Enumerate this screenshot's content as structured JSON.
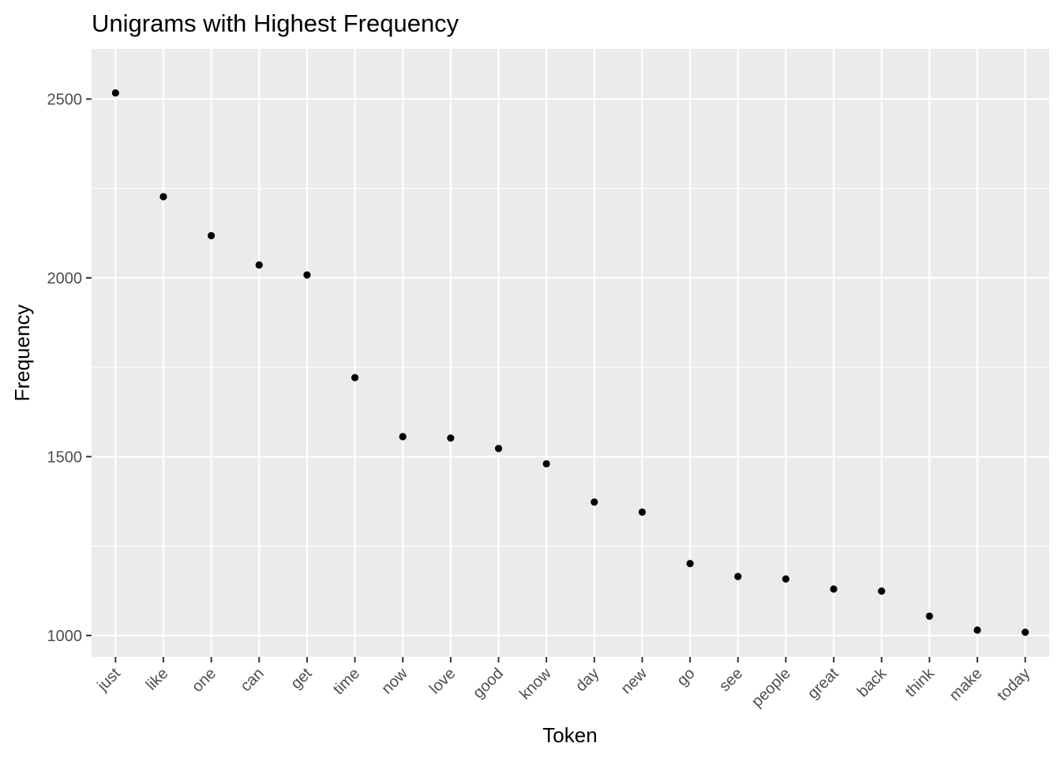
{
  "chart_data": {
    "type": "scatter",
    "title": "Unigrams with Highest Frequency",
    "xlabel": "Token",
    "ylabel": "Frequency",
    "categories": [
      "just",
      "like",
      "one",
      "can",
      "get",
      "time",
      "now",
      "love",
      "good",
      "know",
      "day",
      "new",
      "go",
      "see",
      "people",
      "great",
      "back",
      "think",
      "make",
      "today"
    ],
    "values": [
      2517,
      2227,
      2118,
      2036,
      2008,
      1721,
      1556,
      1552,
      1523,
      1480,
      1373,
      1345,
      1201,
      1165,
      1158,
      1130,
      1124,
      1054,
      1015,
      1009
    ],
    "yticks": [
      1000,
      1500,
      2000,
      2500
    ],
    "ylim": [
      940,
      2640
    ],
    "grid": true,
    "point_color": "#000000",
    "panel_color": "#ebebeb"
  }
}
